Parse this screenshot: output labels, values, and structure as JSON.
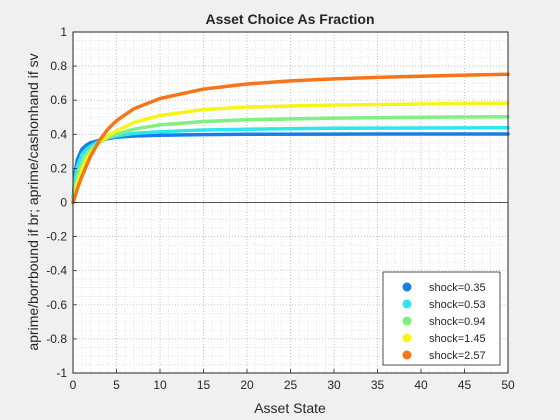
{
  "chart_data": {
    "type": "line",
    "title": "Asset Choice As Fraction",
    "xlabel": "Asset State",
    "ylabel": "aprime/borrbound if br; aprime/cashonhand if sv",
    "xlim": [
      0,
      50
    ],
    "ylim": [
      -1,
      1
    ],
    "xticks": [
      0,
      5,
      10,
      15,
      20,
      25,
      30,
      35,
      40,
      45,
      50
    ],
    "yticks": [
      -1,
      -0.8,
      -0.6,
      -0.4,
      -0.2,
      0,
      0.2,
      0.4,
      0.6,
      0.8,
      1
    ],
    "xtick_labels": [
      "0",
      "5",
      "10",
      "15",
      "20",
      "25",
      "30",
      "35",
      "40",
      "45",
      "50"
    ],
    "ytick_labels": [
      "-1",
      "-0.8",
      "-0.6",
      "-0.4",
      "-0.2",
      "0",
      "0.2",
      "0.4",
      "0.6",
      "0.8",
      "1"
    ],
    "grid": "major and minor dotted",
    "zero_line": true,
    "legend_position": "bottom-right",
    "series": [
      {
        "name": "shock=0.35",
        "color": "#1a7de6",
        "x": [
          0,
          0.25,
          0.5,
          1,
          1.5,
          2,
          3,
          4,
          5,
          7,
          10,
          15,
          20,
          30,
          40,
          50
        ],
        "y": [
          0,
          0.18,
          0.25,
          0.31,
          0.335,
          0.35,
          0.365,
          0.375,
          0.383,
          0.39,
          0.395,
          0.398,
          0.4,
          0.401,
          0.402,
          0.402
        ]
      },
      {
        "name": "shock=0.53",
        "color": "#2ee6ee",
        "x": [
          0,
          0.25,
          0.5,
          1,
          1.5,
          2,
          3,
          4,
          5,
          7,
          10,
          15,
          20,
          30,
          40,
          50
        ],
        "y": [
          0,
          0.14,
          0.21,
          0.28,
          0.31,
          0.33,
          0.36,
          0.38,
          0.39,
          0.405,
          0.415,
          0.425,
          0.43,
          0.435,
          0.437,
          0.438
        ]
      },
      {
        "name": "shock=0.94",
        "color": "#80f080",
        "x": [
          0,
          0.25,
          0.5,
          1,
          1.5,
          2,
          3,
          4,
          5,
          7,
          10,
          15,
          20,
          30,
          40,
          50
        ],
        "y": [
          0,
          0.09,
          0.15,
          0.23,
          0.28,
          0.31,
          0.35,
          0.38,
          0.4,
          0.43,
          0.455,
          0.475,
          0.485,
          0.495,
          0.5,
          0.503
        ]
      },
      {
        "name": "shock=1.45",
        "color": "#f5f51a",
        "x": [
          0,
          0.25,
          0.5,
          1,
          1.5,
          2,
          3,
          4,
          5,
          7,
          10,
          15,
          20,
          30,
          40,
          50
        ],
        "y": [
          0,
          0.06,
          0.11,
          0.19,
          0.25,
          0.29,
          0.35,
          0.39,
          0.42,
          0.47,
          0.51,
          0.545,
          0.56,
          0.572,
          0.578,
          0.583
        ]
      },
      {
        "name": "shock=2.57",
        "color": "#f5761a",
        "x": [
          0,
          0.25,
          0.5,
          1,
          1.5,
          2,
          3,
          4,
          5,
          7,
          10,
          15,
          20,
          25,
          30,
          35,
          40,
          45,
          50
        ],
        "y": [
          0,
          0.04,
          0.08,
          0.15,
          0.21,
          0.27,
          0.36,
          0.43,
          0.48,
          0.55,
          0.61,
          0.665,
          0.695,
          0.713,
          0.725,
          0.734,
          0.741,
          0.747,
          0.752
        ]
      }
    ]
  }
}
